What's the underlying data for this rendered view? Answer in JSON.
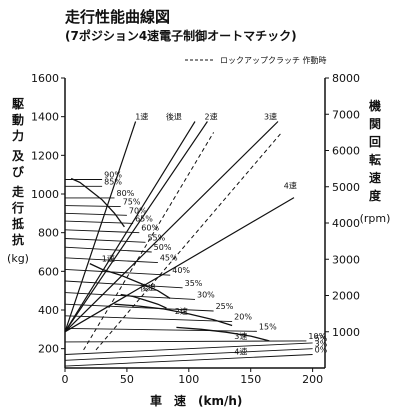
{
  "chart_data": {
    "type": "line",
    "title": "走行性能曲線図",
    "subtitle": "(7ポジション4速電子制御オートマチック)",
    "legend": {
      "label": "ロックアップクラッチ 作動時",
      "position": "top-right",
      "style": "dashed"
    },
    "xlabel": "車　速　(km/h)",
    "ylabel_left": [
      "駆",
      "動",
      "力",
      "及",
      "び",
      "走",
      "行",
      "抵",
      "抗",
      "(kg)"
    ],
    "ylabel_right": [
      "機",
      "関",
      "回",
      "転",
      "速",
      "度",
      "(rpm)"
    ],
    "xlim": [
      0,
      210
    ],
    "ylim_left": [
      100,
      1600
    ],
    "ylim_right": [
      0,
      8000
    ],
    "x_ticks": [
      "0",
      "50",
      "100",
      "150",
      "200"
    ],
    "y_ticks_left": [
      "200",
      "400",
      "600",
      "800",
      "1000",
      "1200",
      "1400",
      "1600"
    ],
    "y_ticks_right": [
      "1000",
      "2000",
      "3000",
      "4000",
      "5000",
      "6000",
      "7000",
      "8000"
    ],
    "grid": false,
    "tractive_force_series": [
      {
        "name": "1速",
        "x": [
          5,
          12,
          20,
          30,
          40,
          48
        ],
        "y": [
          1080,
          1060,
          1020,
          970,
          900,
          830
        ]
      },
      {
        "name": "2速",
        "x": [
          20,
          30,
          45,
          60,
          75,
          85
        ],
        "y": [
          640,
          610,
          580,
          540,
          500,
          460
        ]
      },
      {
        "name": "後退",
        "x": [
          45,
          55,
          65,
          75,
          82
        ],
        "y": [
          480,
          470,
          450,
          430,
          410
        ]
      },
      {
        "name": "3速",
        "x": [
          40,
          60,
          80,
          100,
          120,
          135
        ],
        "y": [
          430,
          420,
          405,
          380,
          350,
          320
        ]
      },
      {
        "name": "4速",
        "x": [
          90,
          110,
          130,
          150,
          165
        ],
        "y": [
          310,
          300,
          285,
          265,
          240
        ]
      }
    ],
    "resistance_series": [
      {
        "name": "90%",
        "x": [
          0,
          30
        ],
        "y": [
          1075,
          1075
        ]
      },
      {
        "name": "85%",
        "x": [
          0,
          30
        ],
        "y": [
          1040,
          1040
        ]
      },
      {
        "name": "80%",
        "x": [
          0,
          40
        ],
        "y": [
          980,
          980
        ]
      },
      {
        "name": "75%",
        "x": [
          0,
          45
        ],
        "y": [
          940,
          935
        ]
      },
      {
        "name": "70%",
        "x": [
          0,
          50
        ],
        "y": [
          900,
          890
        ]
      },
      {
        "name": "65%",
        "x": [
          0,
          55
        ],
        "y": [
          860,
          848
        ]
      },
      {
        "name": "60%",
        "x": [
          0,
          60
        ],
        "y": [
          815,
          800
        ]
      },
      {
        "name": "55%",
        "x": [
          0,
          65
        ],
        "y": [
          770,
          750
        ]
      },
      {
        "name": "50%",
        "x": [
          0,
          70
        ],
        "y": [
          725,
          700
        ]
      },
      {
        "name": "45%",
        "x": [
          0,
          75
        ],
        "y": [
          670,
          645
        ]
      },
      {
        "name": "40%",
        "x": [
          0,
          85
        ],
        "y": [
          610,
          580
        ]
      },
      {
        "name": "35%",
        "x": [
          0,
          95
        ],
        "y": [
          550,
          515
        ]
      },
      {
        "name": "30%",
        "x": [
          0,
          105
        ],
        "y": [
          490,
          455
        ]
      },
      {
        "name": "25%",
        "x": [
          0,
          120
        ],
        "y": [
          430,
          395
        ]
      },
      {
        "name": "20%",
        "x": [
          0,
          135
        ],
        "y": [
          370,
          340
        ]
      },
      {
        "name": "15%",
        "x": [
          0,
          155
        ],
        "y": [
          305,
          290
        ]
      },
      {
        "name": "10%",
        "x": [
          0,
          195
        ],
        "y": [
          235,
          240
        ]
      },
      {
        "name": "5%",
        "x": [
          0,
          200
        ],
        "y": [
          170,
          230
        ]
      },
      {
        "name": "3%",
        "x": [
          0,
          200
        ],
        "y": [
          140,
          200
        ]
      },
      {
        "name": "0%",
        "x": [
          0,
          200
        ],
        "y": [
          110,
          170
        ]
      }
    ],
    "engine_speed_series": [
      {
        "name": "1速",
        "lockup": false,
        "x": [
          0,
          57
        ],
        "y_rpm": [
          1000,
          6800
        ]
      },
      {
        "name": "後退",
        "lockup": false,
        "x": [
          0,
          105
        ],
        "y_rpm": [
          1000,
          6800
        ]
      },
      {
        "name": "2速",
        "lockup": false,
        "x": [
          0,
          115
        ],
        "y_rpm": [
          1000,
          6800
        ]
      },
      {
        "name": "2速",
        "lockup": true,
        "x": [
          15,
          120
        ],
        "y_rpm": [
          500,
          6500
        ]
      },
      {
        "name": "3速",
        "lockup": false,
        "x": [
          0,
          172
        ],
        "y_rpm": [
          1000,
          6800
        ]
      },
      {
        "name": "3速",
        "lockup": true,
        "x": [
          25,
          175
        ],
        "y_rpm": [
          500,
          6500
        ]
      },
      {
        "name": "4速",
        "lockup": false,
        "x": [
          0,
          185
        ],
        "y_rpm": [
          1000,
          4700
        ]
      }
    ],
    "curve_labels": [
      {
        "text": "1速",
        "x": 62,
        "y_rpm": 6850
      },
      {
        "text": "後退",
        "x": 88,
        "y_rpm": 6850
      },
      {
        "text": "2速",
        "x": 118,
        "y_rpm": 6850
      },
      {
        "text": "3速",
        "x": 166,
        "y_rpm": 6850
      },
      {
        "text": "4速",
        "x": 182,
        "y_rpm": 4950
      },
      {
        "text": "1速",
        "x": 35,
        "y": 650
      },
      {
        "text": "後退",
        "x": 67,
        "y": 500
      },
      {
        "text": "2速",
        "x": 94,
        "y": 380
      },
      {
        "text": "3速",
        "x": 142,
        "y": 250
      },
      {
        "text": "4速",
        "x": 142,
        "y": 170
      }
    ]
  }
}
